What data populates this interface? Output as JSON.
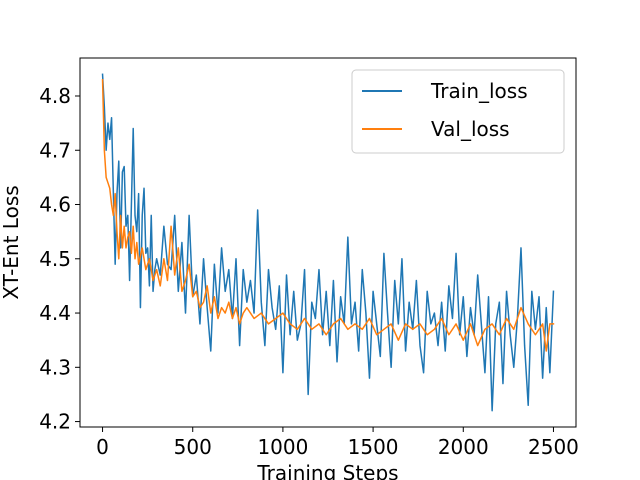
{
  "chart_data": {
    "type": "line",
    "title": "",
    "xlabel": "Training Steps",
    "ylabel": "XT-Ent Loss",
    "xlim": [
      -125,
      2625
    ],
    "ylim": [
      4.19,
      4.87
    ],
    "xticks": [
      0,
      500,
      1000,
      1500,
      2000,
      2500
    ],
    "xtick_labels": [
      "0",
      "500",
      "1000",
      "1500",
      "2000",
      "2500"
    ],
    "yticks": [
      4.2,
      4.3,
      4.4,
      4.5,
      4.6,
      4.7,
      4.8
    ],
    "ytick_labels": [
      "4.2",
      "4.3",
      "4.4",
      "4.5",
      "4.6",
      "4.7",
      "4.8"
    ],
    "grid": false,
    "legend_position": "upper right",
    "series": [
      {
        "name": "Train_loss",
        "color": "#1f77b4",
        "x": [
          0,
          10,
          20,
          30,
          40,
          50,
          60,
          70,
          80,
          90,
          100,
          110,
          120,
          130,
          140,
          150,
          160,
          170,
          180,
          190,
          200,
          210,
          220,
          230,
          240,
          250,
          260,
          270,
          280,
          290,
          300,
          320,
          340,
          360,
          380,
          400,
          420,
          440,
          460,
          480,
          500,
          520,
          540,
          560,
          580,
          600,
          620,
          640,
          660,
          680,
          700,
          720,
          740,
          760,
          780,
          800,
          820,
          840,
          860,
          880,
          900,
          920,
          940,
          960,
          980,
          1000,
          1020,
          1040,
          1060,
          1080,
          1100,
          1120,
          1140,
          1160,
          1180,
          1200,
          1220,
          1240,
          1260,
          1280,
          1300,
          1320,
          1340,
          1360,
          1380,
          1400,
          1420,
          1440,
          1460,
          1480,
          1500,
          1520,
          1540,
          1560,
          1580,
          1600,
          1620,
          1640,
          1660,
          1680,
          1700,
          1720,
          1740,
          1760,
          1780,
          1800,
          1820,
          1840,
          1860,
          1880,
          1900,
          1920,
          1940,
          1960,
          1980,
          2000,
          2020,
          2040,
          2060,
          2080,
          2100,
          2120,
          2140,
          2160,
          2180,
          2200,
          2220,
          2240,
          2260,
          2280,
          2300,
          2320,
          2340,
          2360,
          2380,
          2400,
          2420,
          2440,
          2460,
          2480,
          2500
        ],
        "values": [
          4.84,
          4.78,
          4.7,
          4.75,
          4.72,
          4.76,
          4.62,
          4.49,
          4.62,
          4.68,
          4.52,
          4.66,
          4.67,
          4.56,
          4.58,
          4.46,
          4.6,
          4.74,
          4.58,
          4.55,
          4.62,
          4.41,
          4.58,
          4.63,
          4.51,
          4.52,
          4.45,
          4.58,
          4.44,
          4.48,
          4.5,
          4.47,
          4.56,
          4.49,
          4.48,
          4.58,
          4.44,
          4.53,
          4.4,
          4.58,
          4.43,
          4.47,
          4.38,
          4.5,
          4.41,
          4.33,
          4.49,
          4.4,
          4.52,
          4.44,
          4.48,
          4.39,
          4.5,
          4.34,
          4.48,
          4.42,
          4.46,
          4.4,
          4.59,
          4.42,
          4.34,
          4.48,
          4.41,
          4.37,
          4.45,
          4.29,
          4.47,
          4.36,
          4.44,
          4.35,
          4.38,
          4.48,
          4.25,
          4.42,
          4.39,
          4.48,
          4.36,
          4.44,
          4.34,
          4.46,
          4.31,
          4.43,
          4.38,
          4.54,
          4.38,
          4.42,
          4.33,
          4.48,
          4.4,
          4.28,
          4.44,
          4.38,
          4.32,
          4.51,
          4.4,
          4.3,
          4.46,
          4.38,
          4.5,
          4.33,
          4.42,
          4.37,
          4.46,
          4.34,
          4.29,
          4.44,
          4.38,
          4.4,
          4.34,
          4.42,
          4.33,
          4.45,
          4.39,
          4.51,
          4.36,
          4.43,
          4.32,
          4.41,
          4.36,
          4.47,
          4.38,
          4.29,
          4.43,
          4.22,
          4.38,
          4.42,
          4.27,
          4.44,
          4.36,
          4.3,
          4.39,
          4.52,
          4.34,
          4.23,
          4.44,
          4.37,
          4.43,
          4.28,
          4.41,
          4.29,
          4.44
        ]
      },
      {
        "name": "Val_loss",
        "color": "#ff7f0e",
        "x": [
          0,
          10,
          20,
          30,
          40,
          50,
          60,
          70,
          80,
          90,
          100,
          110,
          120,
          130,
          140,
          150,
          160,
          170,
          180,
          190,
          200,
          220,
          240,
          260,
          280,
          300,
          320,
          340,
          360,
          380,
          400,
          420,
          440,
          460,
          480,
          500,
          520,
          540,
          560,
          580,
          600,
          620,
          640,
          660,
          680,
          700,
          720,
          740,
          760,
          780,
          800,
          840,
          880,
          920,
          960,
          1000,
          1040,
          1080,
          1120,
          1160,
          1200,
          1240,
          1280,
          1320,
          1360,
          1400,
          1440,
          1480,
          1520,
          1560,
          1600,
          1640,
          1680,
          1720,
          1760,
          1800,
          1840,
          1880,
          1920,
          1960,
          2000,
          2040,
          2080,
          2120,
          2160,
          2200,
          2240,
          2280,
          2320,
          2360,
          2400,
          2440,
          2460,
          2480,
          2500
        ],
        "values": [
          4.83,
          4.7,
          4.65,
          4.64,
          4.63,
          4.6,
          4.58,
          4.62,
          4.55,
          4.5,
          4.58,
          4.52,
          4.56,
          4.52,
          4.54,
          4.55,
          4.51,
          4.56,
          4.5,
          4.53,
          4.49,
          4.52,
          4.48,
          4.5,
          4.46,
          4.48,
          4.45,
          4.5,
          4.46,
          4.56,
          4.47,
          4.52,
          4.44,
          4.46,
          4.49,
          4.43,
          4.44,
          4.41,
          4.42,
          4.45,
          4.4,
          4.43,
          4.39,
          4.41,
          4.4,
          4.42,
          4.39,
          4.41,
          4.38,
          4.4,
          4.41,
          4.39,
          4.4,
          4.38,
          4.39,
          4.4,
          4.38,
          4.37,
          4.39,
          4.37,
          4.38,
          4.36,
          4.38,
          4.39,
          4.37,
          4.38,
          4.37,
          4.39,
          4.36,
          4.37,
          4.38,
          4.35,
          4.38,
          4.37,
          4.38,
          4.36,
          4.37,
          4.39,
          4.36,
          4.38,
          4.35,
          4.38,
          4.34,
          4.37,
          4.38,
          4.36,
          4.39,
          4.37,
          4.41,
          4.38,
          4.36,
          4.38,
          4.33,
          4.38,
          4.38
        ]
      }
    ]
  }
}
